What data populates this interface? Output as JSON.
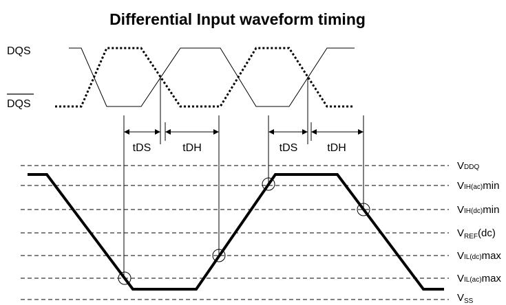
{
  "header": {
    "title": "Differential Input waveform timing"
  },
  "signals": [
    "DQS",
    "DQS"
  ],
  "timings": [
    "tDS",
    "tDH",
    "tDS",
    "tDH"
  ],
  "levels": [
    {
      "main": "V",
      "sub": "DDQ"
    },
    {
      "main": "V",
      "sub": "IH(ac)",
      "suffix": "min"
    },
    {
      "main": "V",
      "sub": "IH(dc)",
      "suffix": "min"
    },
    {
      "main": "V",
      "sub": "REF",
      "suffix": "(dc)"
    },
    {
      "main": "V",
      "sub": "IL(dc)",
      "suffix": "max"
    },
    {
      "main": "V",
      "sub": "IL(ac)",
      "suffix": "max"
    },
    {
      "main": "V",
      "sub": "SS"
    }
  ]
}
